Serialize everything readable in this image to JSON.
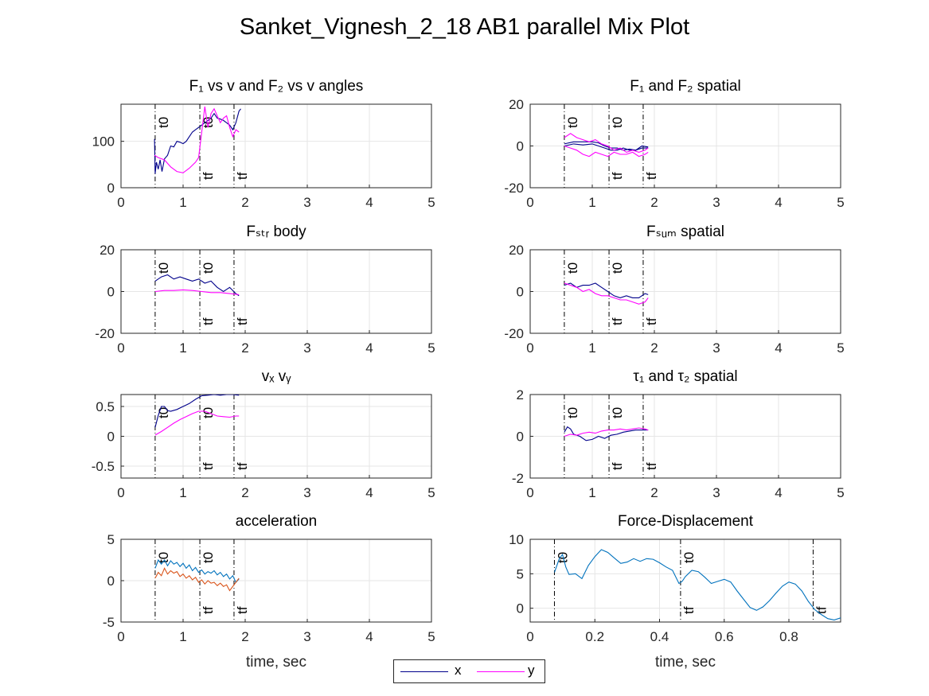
{
  "figure_title": "Sanket_Vignesh_2_18 AB1 parallel Mix Plot",
  "legend": [
    {
      "label": "x",
      "color": "#00008b"
    },
    {
      "label": "y",
      "color": "#ff00ff"
    }
  ],
  "chart_data": [
    {
      "id": "p1",
      "type": "line",
      "title": "F₁ vs v and F₂ vs v angles",
      "xlabel": "",
      "ylabel": "",
      "xlim": [
        0,
        5
      ],
      "ylim": [
        0,
        180
      ],
      "xticks": [
        0,
        1,
        2,
        3,
        4,
        5
      ],
      "yticks": [
        0,
        100
      ],
      "grid": true,
      "vlines": [
        {
          "x": 0.55,
          "label": "t0"
        },
        {
          "x": 1.27,
          "label": "t0"
        },
        {
          "x": 1.27,
          "label": "tf"
        },
        {
          "x": 1.82,
          "label": "tf"
        }
      ],
      "series": [
        {
          "color": "#00008b",
          "x": [
            0.54,
            0.55,
            0.57,
            0.6,
            0.63,
            0.66,
            0.7,
            0.75,
            0.8,
            0.85,
            0.9,
            0.95,
            1.0,
            1.05,
            1.1,
            1.15,
            1.2,
            1.25,
            1.3,
            1.35,
            1.4,
            1.45,
            1.5,
            1.55,
            1.6,
            1.65,
            1.7,
            1.75,
            1.8,
            1.85,
            1.9,
            1.93
          ],
          "y": [
            105,
            30,
            55,
            40,
            60,
            35,
            62,
            70,
            90,
            88,
            100,
            98,
            95,
            100,
            110,
            120,
            125,
            130,
            135,
            140,
            145,
            150,
            160,
            150,
            148,
            145,
            140,
            135,
            125,
            140,
            165,
            170
          ]
        },
        {
          "color": "#ff00ff",
          "x": [
            0.54,
            0.6,
            0.7,
            0.8,
            0.9,
            1.0,
            1.1,
            1.2,
            1.25,
            1.3,
            1.35,
            1.4,
            1.45,
            1.5,
            1.55,
            1.6,
            1.65,
            1.7,
            1.75,
            1.8,
            1.85,
            1.9
          ],
          "y": [
            70,
            65,
            60,
            45,
            35,
            32,
            42,
            55,
            65,
            120,
            175,
            130,
            160,
            170,
            155,
            140,
            150,
            155,
            130,
            110,
            125,
            120
          ]
        }
      ]
    },
    {
      "id": "p2",
      "type": "line",
      "title": "F₁ and F₂ spatial",
      "xlabel": "",
      "ylabel": "",
      "xlim": [
        0,
        5
      ],
      "ylim": [
        -20,
        20
      ],
      "xticks": [
        0,
        1,
        2,
        3,
        4,
        5
      ],
      "yticks": [
        -20,
        0,
        20
      ],
      "grid": true,
      "vlines": [
        {
          "x": 0.55,
          "label": "t0"
        },
        {
          "x": 1.27,
          "label": "t0"
        },
        {
          "x": 1.27,
          "label": "tf"
        },
        {
          "x": 1.82,
          "label": "tf"
        }
      ],
      "series": [
        {
          "color": "#00008b",
          "x": [
            0.55,
            0.7,
            0.85,
            1.0,
            1.1,
            1.2,
            1.3,
            1.4,
            1.5,
            1.6,
            1.7,
            1.8,
            1.9
          ],
          "y": [
            1,
            2,
            2,
            2,
            1.5,
            0,
            -1,
            -1,
            -2,
            -1.5,
            -2,
            0,
            -0.5
          ]
        },
        {
          "color": "#00008b",
          "x": [
            0.55,
            0.7,
            0.85,
            1.0,
            1.1,
            1.2,
            1.3,
            1.4,
            1.5,
            1.6,
            1.7,
            1.8,
            1.9
          ],
          "y": [
            0,
            1,
            0.5,
            1,
            0,
            -1,
            -2,
            -2,
            -1,
            -2,
            -2,
            -1,
            -1
          ]
        },
        {
          "color": "#ff00ff",
          "x": [
            0.55,
            0.65,
            0.75,
            0.85,
            0.95,
            1.05,
            1.15,
            1.25,
            1.35,
            1.45,
            1.55,
            1.65,
            1.75,
            1.85,
            1.9
          ],
          "y": [
            4,
            6,
            4,
            3,
            2,
            3,
            1,
            0,
            -2,
            -1,
            -3,
            -2,
            -3,
            -2,
            -1
          ]
        },
        {
          "color": "#ff00ff",
          "x": [
            0.55,
            0.65,
            0.75,
            0.85,
            0.95,
            1.05,
            1.15,
            1.25,
            1.35,
            1.45,
            1.55,
            1.65,
            1.75,
            1.85,
            1.9
          ],
          "y": [
            0,
            -1,
            -2,
            -4,
            -5,
            -3,
            -4,
            -5,
            -3,
            -4,
            -4,
            -3,
            -5,
            -4,
            -3
          ]
        }
      ]
    },
    {
      "id": "p3",
      "type": "line",
      "title": "Fₛₜᵣ body",
      "xlabel": "",
      "ylabel": "",
      "xlim": [
        0,
        5
      ],
      "ylim": [
        -20,
        20
      ],
      "xticks": [
        0,
        1,
        2,
        3,
        4,
        5
      ],
      "yticks": [
        -20,
        0,
        20
      ],
      "grid": true,
      "vlines": [
        {
          "x": 0.55,
          "label": "t0"
        },
        {
          "x": 1.27,
          "label": "t0"
        },
        {
          "x": 1.27,
          "label": "tf"
        },
        {
          "x": 1.82,
          "label": "tf"
        }
      ],
      "series": [
        {
          "color": "#00008b",
          "x": [
            0.55,
            0.65,
            0.75,
            0.85,
            0.95,
            1.05,
            1.15,
            1.25,
            1.35,
            1.45,
            1.55,
            1.65,
            1.75,
            1.85,
            1.9
          ],
          "y": [
            5,
            7,
            8,
            6,
            7,
            6,
            5,
            6,
            4,
            5,
            2,
            0,
            2,
            -1,
            -2
          ]
        },
        {
          "color": "#ff00ff",
          "x": [
            0.55,
            0.7,
            0.85,
            1.0,
            1.15,
            1.3,
            1.45,
            1.6,
            1.75,
            1.9
          ],
          "y": [
            0,
            0.5,
            0.5,
            0.8,
            0.5,
            0,
            -0.5,
            -0.5,
            -1,
            -1.5
          ]
        }
      ]
    },
    {
      "id": "p4",
      "type": "line",
      "title": "Fₛᵤₘ spatial",
      "xlabel": "",
      "ylabel": "",
      "xlim": [
        0,
        5
      ],
      "ylim": [
        -20,
        20
      ],
      "xticks": [
        0,
        1,
        2,
        3,
        4,
        5
      ],
      "yticks": [
        -20,
        0,
        20
      ],
      "grid": true,
      "vlines": [
        {
          "x": 0.55,
          "label": "t0"
        },
        {
          "x": 1.27,
          "label": "t0"
        },
        {
          "x": 1.27,
          "label": "tf"
        },
        {
          "x": 1.82,
          "label": "tf"
        }
      ],
      "series": [
        {
          "color": "#00008b",
          "x": [
            0.55,
            0.65,
            0.75,
            0.85,
            0.95,
            1.05,
            1.15,
            1.25,
            1.35,
            1.45,
            1.55,
            1.65,
            1.75,
            1.85,
            1.9
          ],
          "y": [
            3,
            4,
            2,
            3,
            3,
            4,
            2,
            0,
            -2,
            -3,
            -2,
            -3,
            -3,
            -1,
            -1.5
          ]
        },
        {
          "color": "#ff00ff",
          "x": [
            0.55,
            0.65,
            0.75,
            0.85,
            0.95,
            1.05,
            1.15,
            1.25,
            1.35,
            1.45,
            1.55,
            1.65,
            1.75,
            1.85,
            1.9
          ],
          "y": [
            4,
            3,
            2,
            0,
            1,
            -1,
            -2,
            -2,
            -3,
            -4,
            -4,
            -5,
            -6,
            -5,
            -3
          ]
        }
      ]
    },
    {
      "id": "p5",
      "type": "line",
      "title": "vₓ vᵧ",
      "xlabel": "",
      "ylabel": "",
      "xlim": [
        0,
        5
      ],
      "ylim": [
        -0.7,
        0.7
      ],
      "xticks": [
        0,
        1,
        2,
        3,
        4,
        5
      ],
      "yticks": [
        -0.5,
        0,
        0.5
      ],
      "grid": true,
      "vlines": [
        {
          "x": 0.55,
          "label": "t0"
        },
        {
          "x": 1.27,
          "label": "t0"
        },
        {
          "x": 1.27,
          "label": "tf"
        },
        {
          "x": 1.82,
          "label": "tf"
        }
      ],
      "series": [
        {
          "color": "#00008b",
          "x": [
            0.55,
            0.6,
            0.65,
            0.7,
            0.75,
            0.8,
            0.9,
            1.0,
            1.1,
            1.2,
            1.3,
            1.4,
            1.5,
            1.6,
            1.7,
            1.8,
            1.9
          ],
          "y": [
            0.15,
            0.35,
            0.5,
            0.5,
            0.43,
            0.42,
            0.45,
            0.5,
            0.55,
            0.62,
            0.68,
            0.69,
            0.7,
            0.69,
            0.7,
            0.7,
            0.69
          ]
        },
        {
          "color": "#ff00ff",
          "x": [
            0.55,
            0.65,
            0.75,
            0.85,
            0.95,
            1.05,
            1.15,
            1.25,
            1.35,
            1.45,
            1.55,
            1.65,
            1.75,
            1.85,
            1.9
          ],
          "y": [
            0.02,
            0.08,
            0.15,
            0.22,
            0.28,
            0.33,
            0.38,
            0.42,
            0.42,
            0.38,
            0.34,
            0.33,
            0.32,
            0.34,
            0.34
          ]
        }
      ]
    },
    {
      "id": "p6",
      "type": "line",
      "title": "τ₁ and τ₂ spatial",
      "xlabel": "",
      "ylabel": "",
      "xlim": [
        0,
        5
      ],
      "ylim": [
        -2,
        2
      ],
      "xticks": [
        0,
        1,
        2,
        3,
        4,
        5
      ],
      "yticks": [
        -2,
        0,
        2
      ],
      "grid": true,
      "vlines": [
        {
          "x": 0.55,
          "label": "t0"
        },
        {
          "x": 1.27,
          "label": "t0"
        },
        {
          "x": 1.27,
          "label": "tf"
        },
        {
          "x": 1.82,
          "label": "tf"
        }
      ],
      "series": [
        {
          "color": "#00008b",
          "x": [
            0.55,
            0.6,
            0.65,
            0.7,
            0.8,
            0.9,
            1.0,
            1.1,
            1.2,
            1.3,
            1.4,
            1.5,
            1.6,
            1.7,
            1.8,
            1.9
          ],
          "y": [
            0.2,
            0.45,
            0.35,
            0.1,
            0.0,
            -0.2,
            -0.15,
            0.0,
            -0.1,
            0.05,
            0.1,
            0.2,
            0.25,
            0.3,
            0.3,
            0.3
          ]
        },
        {
          "color": "#ff00ff",
          "x": [
            0.55,
            0.65,
            0.75,
            0.85,
            0.95,
            1.05,
            1.15,
            1.25,
            1.35,
            1.45,
            1.55,
            1.65,
            1.75,
            1.85,
            1.9
          ],
          "y": [
            0.0,
            0.1,
            0.05,
            0.15,
            0.2,
            0.15,
            0.25,
            0.3,
            0.3,
            0.35,
            0.3,
            0.35,
            0.4,
            0.35,
            0.3
          ]
        }
      ]
    },
    {
      "id": "p7",
      "type": "line",
      "title": "acceleration",
      "xlabel": "time, sec",
      "ylabel": "",
      "xlim": [
        0,
        5
      ],
      "ylim": [
        -5,
        5
      ],
      "xticks": [
        0,
        1,
        2,
        3,
        4,
        5
      ],
      "yticks": [
        -5,
        0,
        5
      ],
      "grid": true,
      "vlines": [
        {
          "x": 0.55,
          "label": "t0"
        },
        {
          "x": 1.27,
          "label": "t0"
        },
        {
          "x": 1.27,
          "label": "tf"
        },
        {
          "x": 1.82,
          "label": "tf"
        }
      ],
      "series": [
        {
          "color": "#0072bd",
          "x": [
            0.55,
            0.6,
            0.65,
            0.7,
            0.75,
            0.8,
            0.85,
            0.9,
            0.95,
            1.0,
            1.05,
            1.1,
            1.15,
            1.2,
            1.25,
            1.3,
            1.35,
            1.4,
            1.45,
            1.5,
            1.55,
            1.6,
            1.65,
            1.7,
            1.75,
            1.8,
            1.85,
            1.9
          ],
          "y": [
            1.5,
            2.5,
            2.0,
            2.5,
            1.8,
            2.4,
            2.0,
            2.2,
            1.7,
            2.1,
            1.5,
            1.9,
            1.2,
            1.6,
            1.0,
            1.3,
            0.8,
            1.1,
            0.9,
            1.2,
            0.7,
            1.0,
            0.5,
            0.8,
            0.2,
            0.6,
            -0.2,
            0.2
          ]
        },
        {
          "color": "#d95319",
          "x": [
            0.55,
            0.6,
            0.65,
            0.7,
            0.75,
            0.8,
            0.85,
            0.9,
            0.95,
            1.0,
            1.05,
            1.1,
            1.15,
            1.2,
            1.25,
            1.3,
            1.35,
            1.4,
            1.45,
            1.5,
            1.55,
            1.6,
            1.65,
            1.7,
            1.75,
            1.8,
            1.85,
            1.9
          ],
          "y": [
            0.3,
            1.0,
            0.6,
            1.5,
            0.8,
            1.2,
            0.9,
            1.1,
            0.5,
            0.8,
            0.3,
            0.6,
            0.1,
            0.4,
            -0.2,
            0.1,
            -0.4,
            0.0,
            -0.3,
            -0.2,
            -0.6,
            -0.3,
            -0.7,
            -0.5,
            -1.2,
            -0.7,
            -0.2,
            0.3
          ]
        }
      ]
    },
    {
      "id": "p8",
      "type": "line",
      "title": "Force-Displacement",
      "xlabel": "time, sec",
      "ylabel": "",
      "xlim": [
        0,
        0.96
      ],
      "ylim": [
        -2,
        10
      ],
      "xticks": [
        0,
        0.2,
        0.4,
        0.6,
        0.8
      ],
      "yticks": [
        0,
        5,
        10
      ],
      "grid": true,
      "vlines": [
        {
          "x": 0.075,
          "label": "t0"
        },
        {
          "x": 0.465,
          "label": "t0"
        },
        {
          "x": 0.465,
          "label": "tf"
        },
        {
          "x": 0.875,
          "label": "tf"
        }
      ],
      "series": [
        {
          "color": "#0072bd",
          "x": [
            0.075,
            0.09,
            0.1,
            0.11,
            0.12,
            0.14,
            0.16,
            0.18,
            0.2,
            0.22,
            0.24,
            0.26,
            0.28,
            0.3,
            0.32,
            0.34,
            0.36,
            0.38,
            0.4,
            0.42,
            0.44,
            0.46,
            0.47,
            0.48,
            0.5,
            0.52,
            0.54,
            0.56,
            0.58,
            0.6,
            0.62,
            0.64,
            0.66,
            0.68,
            0.7,
            0.72,
            0.74,
            0.76,
            0.78,
            0.8,
            0.82,
            0.84,
            0.86,
            0.88,
            0.9,
            0.92,
            0.94,
            0.96
          ],
          "y": [
            5.2,
            7.2,
            7.8,
            6.0,
            4.9,
            5.0,
            4.3,
            6.2,
            7.5,
            8.5,
            8.1,
            7.3,
            6.5,
            6.7,
            7.2,
            6.8,
            7.2,
            7.1,
            6.6,
            6.0,
            5.5,
            3.6,
            3.9,
            4.6,
            5.5,
            5.3,
            4.5,
            3.6,
            3.9,
            4.2,
            3.8,
            2.5,
            1.3,
            0.1,
            -0.3,
            0.2,
            1.1,
            2.2,
            3.2,
            3.8,
            3.5,
            2.5,
            1.0,
            -0.2,
            -0.9,
            -1.5,
            -1.7,
            -1.4
          ]
        }
      ]
    }
  ]
}
